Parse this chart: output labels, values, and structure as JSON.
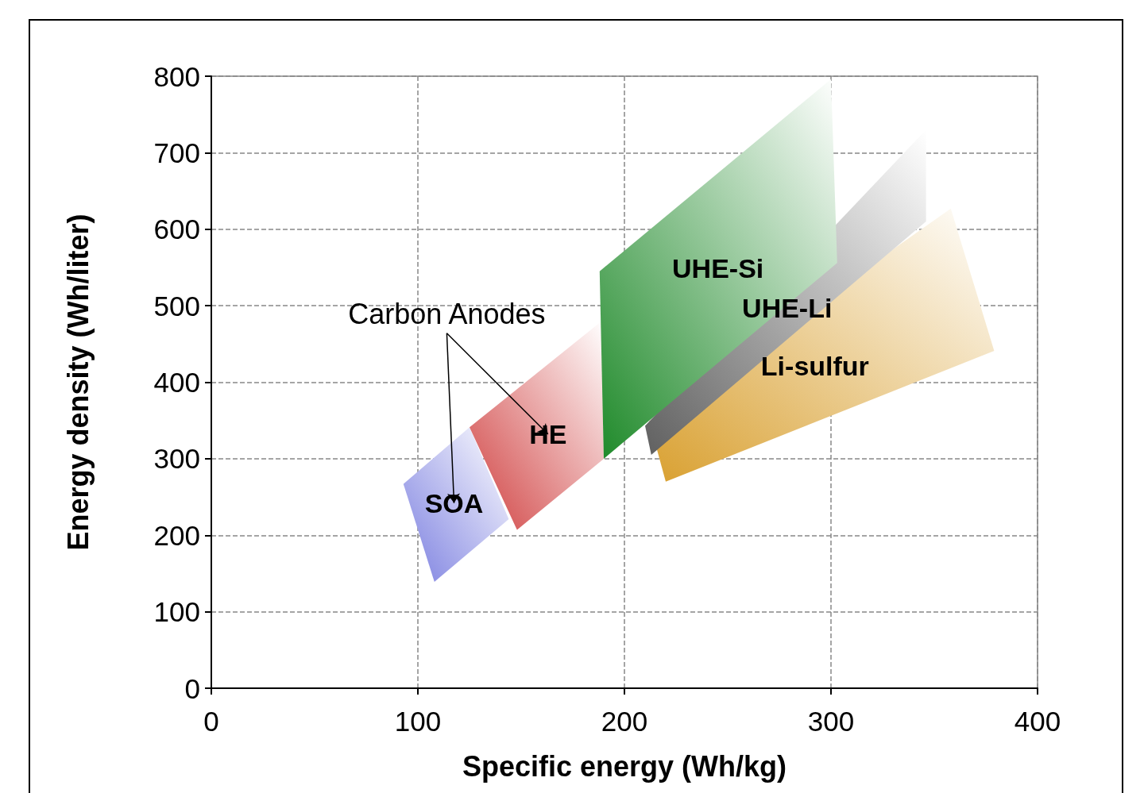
{
  "chart_data": {
    "type": "area",
    "xlabel": "Specific energy (Wh/kg)",
    "ylabel": "Energy density (Wh/liter)",
    "xlim": [
      0,
      400
    ],
    "xticks": [
      0,
      100,
      200,
      300,
      400
    ],
    "ylim": [
      0,
      800
    ],
    "yticks": [
      0,
      100,
      200,
      300,
      400,
      500,
      600,
      700,
      800
    ],
    "grid": true,
    "series": [
      {
        "name": "SOA",
        "color": "#7b7fe0",
        "x": [
          93,
          125,
          144,
          108
        ],
        "values": [
          267,
          341,
          221,
          139
        ]
      },
      {
        "name": "HE",
        "color": "#d04040",
        "x": [
          125,
          189,
          190,
          148
        ],
        "values": [
          341,
          480,
          300,
          207
        ]
      },
      {
        "name": "Li-sulfur",
        "color": "#d9a030",
        "x": [
          212,
          358,
          379,
          220
        ],
        "values": [
          349,
          627,
          441,
          270
        ]
      },
      {
        "name": "UHE-Li",
        "color": "#606060",
        "x": [
          210,
          346,
          346,
          213
        ],
        "values": [
          343,
          730,
          610,
          305
        ]
      },
      {
        "name": "UHE-Si",
        "color": "#1f8a2a",
        "x": [
          188,
          300,
          303,
          190
        ],
        "values": [
          545,
          796,
          556,
          300
        ]
      }
    ],
    "annotations": [
      "Carbon Anodes"
    ]
  }
}
